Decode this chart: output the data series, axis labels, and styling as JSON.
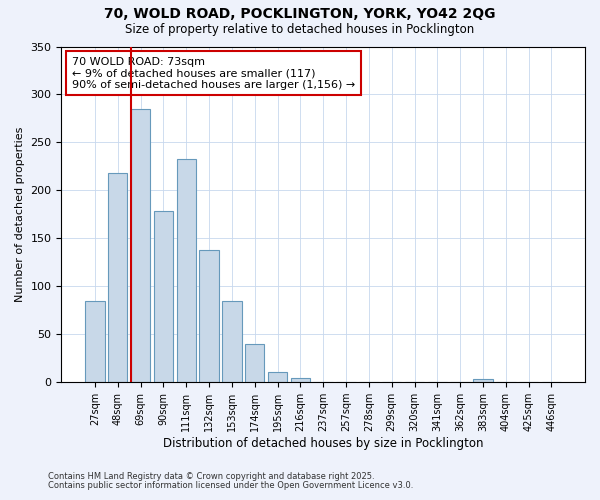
{
  "title": "70, WOLD ROAD, POCKLINGTON, YORK, YO42 2QG",
  "subtitle": "Size of property relative to detached houses in Pocklington",
  "xlabel": "Distribution of detached houses by size in Pocklington",
  "ylabel": "Number of detached properties",
  "bar_labels": [
    "27sqm",
    "48sqm",
    "69sqm",
    "90sqm",
    "111sqm",
    "132sqm",
    "153sqm",
    "174sqm",
    "195sqm",
    "216sqm",
    "237sqm",
    "257sqm",
    "278sqm",
    "299sqm",
    "320sqm",
    "341sqm",
    "362sqm",
    "383sqm",
    "404sqm",
    "425sqm",
    "446sqm"
  ],
  "bar_values": [
    85,
    218,
    285,
    178,
    233,
    138,
    85,
    40,
    11,
    4,
    0,
    0,
    0,
    0,
    0,
    0,
    0,
    3,
    0,
    0,
    0
  ],
  "bar_color": "#c8d8e8",
  "bar_edge_color": "#6699bb",
  "vline_color": "#cc0000",
  "ylim": [
    0,
    350
  ],
  "yticks": [
    0,
    50,
    100,
    150,
    200,
    250,
    300,
    350
  ],
  "annotation_title": "70 WOLD ROAD: 73sqm",
  "annotation_line1": "← 9% of detached houses are smaller (117)",
  "annotation_line2": "90% of semi-detached houses are larger (1,156) →",
  "footer1": "Contains HM Land Registry data © Crown copyright and database right 2025.",
  "footer2": "Contains public sector information licensed under the Open Government Licence v3.0.",
  "background_color": "#eef2fb",
  "plot_bg_color": "#ffffff",
  "grid_color": "#c8d8ee"
}
